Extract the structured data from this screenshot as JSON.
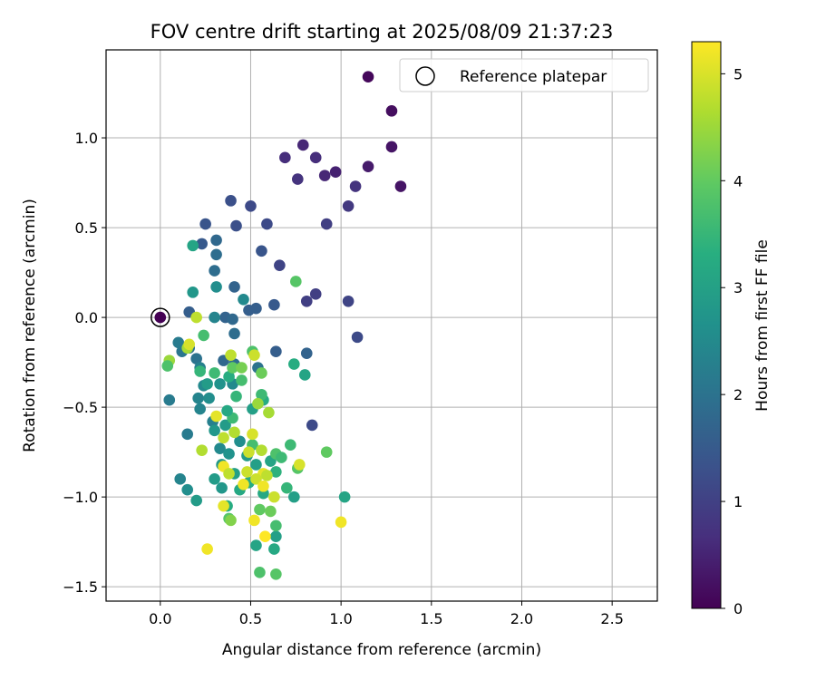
{
  "chart_data": {
    "type": "scatter",
    "title": "FOV centre drift starting at 2025/08/09 21:37:23",
    "xlabel": "Angular distance from reference (arcmin)",
    "ylabel": "Rotation from reference (arcmin)",
    "xlim": [
      -0.3,
      2.75
    ],
    "ylim": [
      -1.58,
      1.49
    ],
    "xticks": [
      "0.0",
      "0.5",
      "1.0",
      "1.5",
      "2.0",
      "2.5"
    ],
    "xtick_values": [
      0,
      0.5,
      1.0,
      1.5,
      2.0,
      2.5
    ],
    "yticks": [
      "−1.5",
      "−1.0",
      "−0.5",
      "0.0",
      "0.5",
      "1.0"
    ],
    "ytick_values": [
      -1.5,
      -1.0,
      -0.5,
      0,
      0.5,
      1.0
    ],
    "grid": true,
    "legend": {
      "position": "top-right",
      "entries": [
        "Reference platepar"
      ]
    },
    "reference": {
      "x": 0,
      "y": 0
    },
    "colorbar": {
      "label": "Hours from first FF file",
      "colormap": "viridis",
      "range": [
        0,
        5.3
      ],
      "ticks": [
        "0",
        "1",
        "2",
        "3",
        "4",
        "5"
      ],
      "tick_values": [
        0,
        1,
        2,
        3,
        4,
        5
      ]
    },
    "series": [
      {
        "color_by": "hours",
        "points": [
          {
            "x": 0.0,
            "y": 0.0,
            "h": 0.0
          },
          {
            "x": 1.15,
            "y": 1.34,
            "h": 0.1
          },
          {
            "x": 1.28,
            "y": 1.15,
            "h": 0.2
          },
          {
            "x": 1.28,
            "y": 0.95,
            "h": 0.3
          },
          {
            "x": 1.33,
            "y": 0.73,
            "h": 0.3
          },
          {
            "x": 1.15,
            "y": 0.84,
            "h": 0.4
          },
          {
            "x": 0.97,
            "y": 0.81,
            "h": 0.5
          },
          {
            "x": 0.91,
            "y": 0.79,
            "h": 0.6
          },
          {
            "x": 0.79,
            "y": 0.96,
            "h": 0.6
          },
          {
            "x": 0.86,
            "y": 0.89,
            "h": 0.7
          },
          {
            "x": 0.69,
            "y": 0.89,
            "h": 0.7
          },
          {
            "x": 0.76,
            "y": 0.77,
            "h": 0.8
          },
          {
            "x": 1.08,
            "y": 0.73,
            "h": 0.8
          },
          {
            "x": 1.04,
            "y": 0.62,
            "h": 0.9
          },
          {
            "x": 0.92,
            "y": 0.52,
            "h": 1.0
          },
          {
            "x": 0.86,
            "y": 0.13,
            "h": 1.0
          },
          {
            "x": 0.81,
            "y": 0.09,
            "h": 1.0
          },
          {
            "x": 1.04,
            "y": 0.09,
            "h": 1.1
          },
          {
            "x": 1.09,
            "y": -0.11,
            "h": 1.2
          },
          {
            "x": 0.84,
            "y": -0.6,
            "h": 1.2
          },
          {
            "x": 0.66,
            "y": 0.29,
            "h": 1.1
          },
          {
            "x": 0.59,
            "y": 0.52,
            "h": 1.2
          },
          {
            "x": 0.5,
            "y": 0.62,
            "h": 1.2
          },
          {
            "x": 0.39,
            "y": 0.65,
            "h": 1.3
          },
          {
            "x": 0.42,
            "y": 0.51,
            "h": 1.3
          },
          {
            "x": 0.25,
            "y": 0.52,
            "h": 1.4
          },
          {
            "x": 0.56,
            "y": 0.37,
            "h": 1.4
          },
          {
            "x": 0.23,
            "y": 0.41,
            "h": 1.5
          },
          {
            "x": 0.63,
            "y": 0.07,
            "h": 1.5
          },
          {
            "x": 0.53,
            "y": 0.05,
            "h": 1.6
          },
          {
            "x": 0.49,
            "y": 0.04,
            "h": 1.6
          },
          {
            "x": 0.41,
            "y": 0.17,
            "h": 1.7
          },
          {
            "x": 0.16,
            "y": 0.03,
            "h": 1.6
          },
          {
            "x": 0.31,
            "y": 0.43,
            "h": 1.8
          },
          {
            "x": 0.31,
            "y": 0.35,
            "h": 1.9
          },
          {
            "x": 0.3,
            "y": 0.26,
            "h": 1.9
          },
          {
            "x": 0.36,
            "y": 0.0,
            "h": 1.7
          },
          {
            "x": 0.4,
            "y": -0.01,
            "h": 1.8
          },
          {
            "x": 0.64,
            "y": -0.19,
            "h": 1.6
          },
          {
            "x": 0.81,
            "y": -0.2,
            "h": 1.7
          },
          {
            "x": 0.35,
            "y": -0.24,
            "h": 1.8
          },
          {
            "x": 0.41,
            "y": -0.26,
            "h": 1.9
          },
          {
            "x": 0.2,
            "y": -0.23,
            "h": 2.0
          },
          {
            "x": 0.16,
            "y": -0.17,
            "h": 2.0
          },
          {
            "x": 0.12,
            "y": -0.19,
            "h": 2.1
          },
          {
            "x": 0.1,
            "y": -0.14,
            "h": 2.2
          },
          {
            "x": 0.54,
            "y": -0.28,
            "h": 2.0
          },
          {
            "x": 0.41,
            "y": -0.09,
            "h": 1.9
          },
          {
            "x": 0.3,
            "y": 0.0,
            "h": 2.4
          },
          {
            "x": 0.46,
            "y": 0.1,
            "h": 2.5
          },
          {
            "x": 0.31,
            "y": 0.17,
            "h": 2.6
          },
          {
            "x": 0.18,
            "y": 0.14,
            "h": 2.8
          },
          {
            "x": 0.18,
            "y": 0.4,
            "h": 3.1
          },
          {
            "x": 0.22,
            "y": -0.28,
            "h": 2.3
          },
          {
            "x": 0.24,
            "y": -0.38,
            "h": 2.5
          },
          {
            "x": 0.21,
            "y": -0.45,
            "h": 2.4
          },
          {
            "x": 0.05,
            "y": -0.46,
            "h": 2.2
          },
          {
            "x": 0.27,
            "y": -0.45,
            "h": 2.6
          },
          {
            "x": 0.33,
            "y": -0.37,
            "h": 2.7
          },
          {
            "x": 0.4,
            "y": -0.37,
            "h": 2.5
          },
          {
            "x": 0.22,
            "y": -0.51,
            "h": 2.4
          },
          {
            "x": 0.29,
            "y": -0.58,
            "h": 2.3
          },
          {
            "x": 0.15,
            "y": -0.65,
            "h": 2.2
          },
          {
            "x": 0.3,
            "y": -0.63,
            "h": 2.8
          },
          {
            "x": 0.36,
            "y": -0.6,
            "h": 2.9
          },
          {
            "x": 0.44,
            "y": -0.69,
            "h": 2.6
          },
          {
            "x": 0.33,
            "y": -0.73,
            "h": 2.5
          },
          {
            "x": 0.38,
            "y": -0.76,
            "h": 2.7
          },
          {
            "x": 0.48,
            "y": -0.77,
            "h": 2.9
          },
          {
            "x": 0.53,
            "y": -0.82,
            "h": 3.0
          },
          {
            "x": 0.61,
            "y": -0.8,
            "h": 3.1
          },
          {
            "x": 0.34,
            "y": -0.82,
            "h": 2.8
          },
          {
            "x": 0.41,
            "y": -0.87,
            "h": 3.0
          },
          {
            "x": 0.3,
            "y": -0.9,
            "h": 2.9
          },
          {
            "x": 0.11,
            "y": -0.9,
            "h": 2.4
          },
          {
            "x": 0.15,
            "y": -0.96,
            "h": 2.6
          },
          {
            "x": 0.2,
            "y": -1.02,
            "h": 2.9
          },
          {
            "x": 0.34,
            "y": -0.95,
            "h": 2.8
          },
          {
            "x": 0.44,
            "y": -0.96,
            "h": 3.2
          },
          {
            "x": 0.49,
            "y": -0.92,
            "h": 3.3
          },
          {
            "x": 0.57,
            "y": -0.98,
            "h": 3.2
          },
          {
            "x": 0.64,
            "y": -0.86,
            "h": 3.4
          },
          {
            "x": 0.72,
            "y": -0.71,
            "h": 3.6
          },
          {
            "x": 0.74,
            "y": -1.0,
            "h": 3.0
          },
          {
            "x": 1.02,
            "y": -1.0,
            "h": 3.1
          },
          {
            "x": 0.7,
            "y": -0.95,
            "h": 3.5
          },
          {
            "x": 0.37,
            "y": -1.05,
            "h": 3.3
          },
          {
            "x": 0.64,
            "y": -1.22,
            "h": 3.0
          },
          {
            "x": 0.53,
            "y": -1.27,
            "h": 3.1
          },
          {
            "x": 0.63,
            "y": -1.29,
            "h": 3.2
          },
          {
            "x": 0.64,
            "y": -1.16,
            "h": 3.7
          },
          {
            "x": 0.55,
            "y": -1.42,
            "h": 3.8
          },
          {
            "x": 0.64,
            "y": -1.43,
            "h": 3.9
          },
          {
            "x": 0.38,
            "y": -1.12,
            "h": 3.9
          },
          {
            "x": 0.55,
            "y": -1.07,
            "h": 4.0
          },
          {
            "x": 0.61,
            "y": -1.08,
            "h": 4.1
          },
          {
            "x": 0.64,
            "y": -0.76,
            "h": 3.8
          },
          {
            "x": 0.67,
            "y": -0.78,
            "h": 3.6
          },
          {
            "x": 0.76,
            "y": -0.84,
            "h": 3.9
          },
          {
            "x": 0.92,
            "y": -0.75,
            "h": 4.0
          },
          {
            "x": 0.51,
            "y": -0.71,
            "h": 3.7
          },
          {
            "x": 0.4,
            "y": -0.56,
            "h": 3.6
          },
          {
            "x": 0.37,
            "y": -0.52,
            "h": 3.2
          },
          {
            "x": 0.51,
            "y": -0.51,
            "h": 3.0
          },
          {
            "x": 0.57,
            "y": -0.46,
            "h": 3.3
          },
          {
            "x": 0.42,
            "y": -0.44,
            "h": 3.5
          },
          {
            "x": 0.38,
            "y": -0.33,
            "h": 3.3
          },
          {
            "x": 0.45,
            "y": -0.35,
            "h": 3.7
          },
          {
            "x": 0.3,
            "y": -0.31,
            "h": 3.6
          },
          {
            "x": 0.22,
            "y": -0.3,
            "h": 3.5
          },
          {
            "x": 0.4,
            "y": -0.28,
            "h": 4.0
          },
          {
            "x": 0.45,
            "y": -0.28,
            "h": 4.2
          },
          {
            "x": 0.51,
            "y": -0.19,
            "h": 3.8
          },
          {
            "x": 0.56,
            "y": -0.31,
            "h": 4.1
          },
          {
            "x": 0.56,
            "y": -0.43,
            "h": 3.6
          },
          {
            "x": 0.74,
            "y": -0.26,
            "h": 3.3
          },
          {
            "x": 0.8,
            "y": -0.32,
            "h": 3.1
          },
          {
            "x": 0.75,
            "y": 0.2,
            "h": 3.9
          },
          {
            "x": 0.26,
            "y": -0.37,
            "h": 2.9
          },
          {
            "x": 0.24,
            "y": -0.1,
            "h": 3.7
          },
          {
            "x": 0.15,
            "y": -0.17,
            "h": 4.6
          },
          {
            "x": 0.2,
            "y": 0.0,
            "h": 4.8
          },
          {
            "x": 0.05,
            "y": -0.24,
            "h": 4.5
          },
          {
            "x": 0.04,
            "y": -0.27,
            "h": 3.8
          },
          {
            "x": 0.16,
            "y": -0.15,
            "h": 5.0
          },
          {
            "x": 0.39,
            "y": -0.21,
            "h": 4.8
          },
          {
            "x": 0.52,
            "y": -0.21,
            "h": 4.9
          },
          {
            "x": 0.41,
            "y": -0.64,
            "h": 4.7
          },
          {
            "x": 0.31,
            "y": -0.55,
            "h": 5.1
          },
          {
            "x": 0.54,
            "y": -0.48,
            "h": 4.5
          },
          {
            "x": 0.6,
            "y": -0.53,
            "h": 4.6
          },
          {
            "x": 0.51,
            "y": -0.65,
            "h": 5.0
          },
          {
            "x": 0.49,
            "y": -0.75,
            "h": 4.9
          },
          {
            "x": 0.56,
            "y": -0.74,
            "h": 4.7
          },
          {
            "x": 0.35,
            "y": -0.67,
            "h": 4.8
          },
          {
            "x": 0.23,
            "y": -0.74,
            "h": 4.7
          },
          {
            "x": 0.57,
            "y": -0.87,
            "h": 5.1
          },
          {
            "x": 0.53,
            "y": -0.9,
            "h": 4.9
          },
          {
            "x": 0.35,
            "y": -0.83,
            "h": 5.2
          },
          {
            "x": 0.38,
            "y": -0.87,
            "h": 4.8
          },
          {
            "x": 0.46,
            "y": -0.93,
            "h": 5.2
          },
          {
            "x": 0.48,
            "y": -0.86,
            "h": 4.9
          },
          {
            "x": 0.59,
            "y": -0.88,
            "h": 4.8
          },
          {
            "x": 0.77,
            "y": -0.82,
            "h": 5.0
          },
          {
            "x": 0.57,
            "y": -0.94,
            "h": 5.2
          },
          {
            "x": 0.63,
            "y": -1.0,
            "h": 4.9
          },
          {
            "x": 0.35,
            "y": -1.05,
            "h": 5.1
          },
          {
            "x": 0.52,
            "y": -1.13,
            "h": 5.2
          },
          {
            "x": 0.58,
            "y": -1.22,
            "h": 5.3
          },
          {
            "x": 1.0,
            "y": -1.14,
            "h": 5.2
          },
          {
            "x": 0.26,
            "y": -1.29,
            "h": 5.2
          },
          {
            "x": 0.39,
            "y": -1.13,
            "h": 4.3
          }
        ]
      }
    ]
  }
}
